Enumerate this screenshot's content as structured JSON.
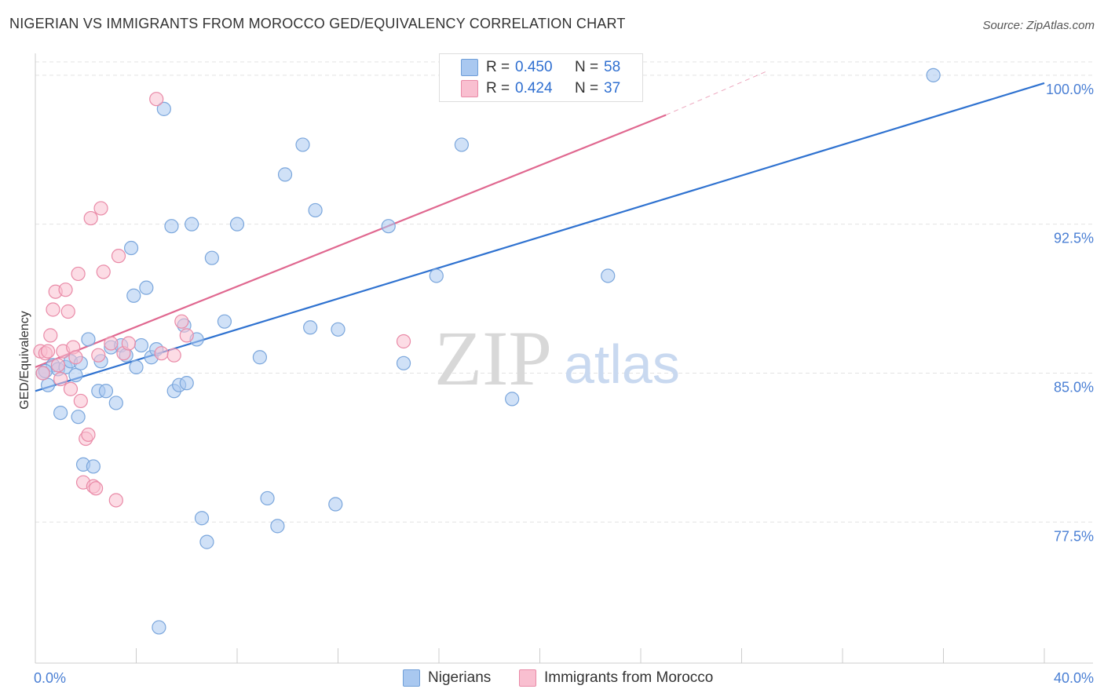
{
  "title": "NIGERIAN VS IMMIGRANTS FROM MOROCCO GED/EQUIVALENCY CORRELATION CHART",
  "source": "Source: ZipAtlas.com",
  "watermark": {
    "part1": "ZIP",
    "part2": "atlas"
  },
  "stats": [
    {
      "r_label": "R =",
      "r_value": "0.450",
      "n_label": "N =",
      "n_value": "58",
      "color": "#a9c8f0",
      "border": "#6f9ed8"
    },
    {
      "r_label": "R =",
      "r_value": "0.424",
      "n_label": "N =",
      "n_value": "37",
      "color": "#f9bfd0",
      "border": "#e98aa7"
    }
  ],
  "legend": [
    {
      "label": "Nigerians",
      "color": "#a9c8f0",
      "border": "#6f9ed8"
    },
    {
      "label": "Immigrants from Morocco",
      "color": "#f9bfd0",
      "border": "#e98aa7"
    }
  ],
  "colors": {
    "blue_fill": "#a9c8f0",
    "blue_stroke": "#7aa6dc",
    "blue_line": "#2f72d0",
    "pink_fill": "#f9bfd0",
    "pink_stroke": "#e98aa7",
    "pink_line": "#e06890",
    "grid": "#e3e3e3",
    "axis": "#cccccc"
  },
  "chart_data": {
    "type": "scatter",
    "title": "NIGERIAN VS IMMIGRANTS FROM MOROCCO GED/EQUIVALENCY CORRELATION CHART",
    "xlabel": "",
    "ylabel": "GED/Equivalency",
    "xlim": [
      0,
      40
    ],
    "ylim": [
      70.4,
      101.1
    ],
    "x_tick_labels": [
      "0.0%",
      "40.0%"
    ],
    "y_ticks": [
      77.5,
      85.0,
      92.5,
      100.0
    ],
    "y_tick_labels": [
      "77.5%",
      "85.0%",
      "92.5%",
      "100.0%"
    ],
    "grid": true,
    "legend_position": "bottom-center",
    "series": [
      {
        "name": "Nigerians",
        "r": 0.45,
        "n": 58,
        "trend": {
          "x0": 0,
          "y0": 84.1,
          "x1": 40,
          "y1": 99.6
        },
        "points": [
          [
            0.3,
            85.0
          ],
          [
            0.5,
            84.4
          ],
          [
            0.7,
            85.4
          ],
          [
            0.9,
            85.2
          ],
          [
            1.0,
            83.0
          ],
          [
            1.2,
            85.3
          ],
          [
            1.4,
            85.6
          ],
          [
            1.6,
            84.9
          ],
          [
            1.7,
            82.8
          ],
          [
            1.9,
            80.4
          ],
          [
            2.1,
            86.7
          ],
          [
            2.3,
            80.3
          ],
          [
            2.5,
            84.1
          ],
          [
            2.6,
            85.6
          ],
          [
            2.8,
            84.1
          ],
          [
            3.0,
            86.3
          ],
          [
            3.2,
            83.5
          ],
          [
            3.4,
            86.4
          ],
          [
            3.6,
            85.9
          ],
          [
            3.8,
            91.3
          ],
          [
            3.9,
            88.9
          ],
          [
            4.0,
            85.3
          ],
          [
            4.2,
            86.4
          ],
          [
            4.4,
            89.3
          ],
          [
            4.6,
            85.8
          ],
          [
            4.8,
            86.2
          ],
          [
            4.9,
            72.2
          ],
          [
            5.1,
            98.3
          ],
          [
            5.4,
            92.4
          ],
          [
            5.5,
            84.1
          ],
          [
            5.7,
            84.4
          ],
          [
            5.9,
            87.4
          ],
          [
            6.0,
            84.5
          ],
          [
            6.2,
            92.5
          ],
          [
            6.4,
            86.7
          ],
          [
            6.6,
            77.7
          ],
          [
            6.8,
            76.5
          ],
          [
            7.0,
            90.8
          ],
          [
            7.5,
            87.6
          ],
          [
            8.0,
            92.5
          ],
          [
            8.9,
            85.8
          ],
          [
            9.2,
            78.7
          ],
          [
            9.6,
            77.3
          ],
          [
            9.9,
            95.0
          ],
          [
            10.6,
            96.5
          ],
          [
            10.9,
            87.3
          ],
          [
            11.1,
            93.2
          ],
          [
            11.9,
            78.4
          ],
          [
            12.0,
            87.2
          ],
          [
            14.0,
            92.4
          ],
          [
            14.6,
            85.5
          ],
          [
            15.9,
            89.9
          ],
          [
            16.9,
            96.5
          ],
          [
            18.9,
            83.7
          ],
          [
            22.7,
            89.9
          ],
          [
            35.6,
            100.0
          ],
          [
            0.4,
            85.1
          ],
          [
            1.8,
            85.5
          ]
        ]
      },
      {
        "name": "Immigrants from Morocco",
        "r": 0.424,
        "n": 37,
        "trend": {
          "x0": 0,
          "y0": 85.3,
          "x1": 25.0,
          "y1": 98.0
        },
        "trend_dashed": {
          "x0": 25.0,
          "y0": 98.0,
          "x1": 29.0,
          "y1": 100.2
        },
        "points": [
          [
            0.2,
            86.1
          ],
          [
            0.3,
            85.0
          ],
          [
            0.4,
            86.0
          ],
          [
            0.5,
            86.1
          ],
          [
            0.6,
            86.9
          ],
          [
            0.7,
            88.2
          ],
          [
            0.8,
            89.1
          ],
          [
            1.0,
            84.7
          ],
          [
            1.1,
            86.1
          ],
          [
            1.2,
            89.2
          ],
          [
            1.3,
            88.1
          ],
          [
            1.4,
            84.2
          ],
          [
            1.5,
            86.3
          ],
          [
            1.6,
            85.8
          ],
          [
            1.7,
            90.0
          ],
          [
            1.8,
            83.6
          ],
          [
            1.9,
            79.5
          ],
          [
            2.0,
            81.7
          ],
          [
            2.1,
            81.9
          ],
          [
            2.2,
            92.8
          ],
          [
            2.3,
            79.3
          ],
          [
            2.4,
            79.2
          ],
          [
            2.5,
            85.9
          ],
          [
            2.6,
            93.3
          ],
          [
            2.7,
            90.1
          ],
          [
            3.0,
            86.5
          ],
          [
            3.2,
            78.6
          ],
          [
            3.3,
            90.9
          ],
          [
            3.5,
            86.0
          ],
          [
            3.7,
            86.5
          ],
          [
            4.8,
            98.8
          ],
          [
            5.0,
            86.0
          ],
          [
            5.5,
            85.9
          ],
          [
            5.8,
            87.6
          ],
          [
            6.0,
            86.9
          ],
          [
            14.6,
            86.6
          ],
          [
            0.9,
            85.4
          ]
        ]
      }
    ]
  }
}
